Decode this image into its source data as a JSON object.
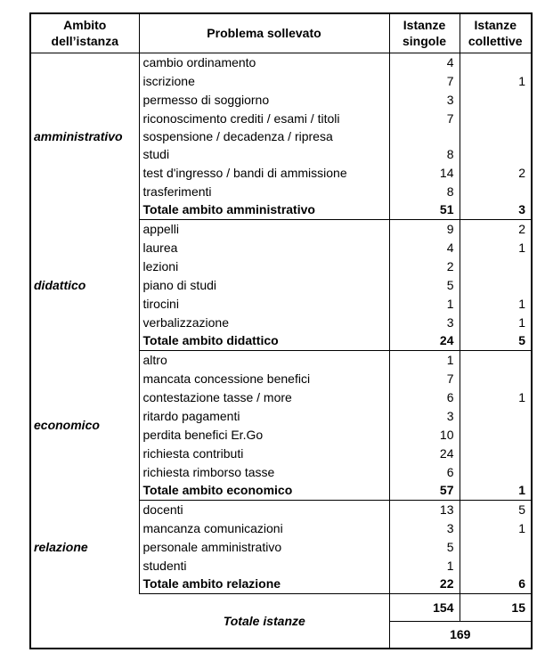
{
  "colors": {
    "background": "#ffffff",
    "text": "#000000",
    "border": "#000000"
  },
  "table": {
    "headers": {
      "ambito": "Ambito dell’istanza",
      "problema": "Problema sollevato",
      "singole": "Istanze singole",
      "collettive": "Istanze collettive"
    },
    "sections": [
      {
        "name": "amministrativo",
        "rows": [
          {
            "label": "cambio ordinamento",
            "singole": 4,
            "collettive": ""
          },
          {
            "label": "iscrizione",
            "singole": 7,
            "collettive": 1
          },
          {
            "label": "permesso di soggiorno",
            "singole": 3,
            "collettive": ""
          },
          {
            "label": "riconoscimento crediti / esami / titoli",
            "singole": 7,
            "collettive": ""
          },
          {
            "label": "sospensione / decadenza / ripresa\nstudi",
            "singole": 8,
            "collettive": ""
          },
          {
            "label": "test d'ingresso / bandi di ammissione",
            "singole": 14,
            "collettive": 2
          },
          {
            "label": "trasferimenti",
            "singole": 8,
            "collettive": ""
          }
        ],
        "total": {
          "label": "Totale ambito amministrativo",
          "singole": 51,
          "collettive": 3
        }
      },
      {
        "name": "didattico",
        "rows": [
          {
            "label": "appelli",
            "singole": 9,
            "collettive": 2
          },
          {
            "label": "laurea",
            "singole": 4,
            "collettive": 1
          },
          {
            "label": "lezioni",
            "singole": 2,
            "collettive": ""
          },
          {
            "label": "piano di studi",
            "singole": 5,
            "collettive": ""
          },
          {
            "label": "tirocini",
            "singole": 1,
            "collettive": 1
          },
          {
            "label": "verbalizzazione",
            "singole": 3,
            "collettive": 1
          }
        ],
        "total": {
          "label": "Totale ambito didattico",
          "singole": 24,
          "collettive": 5
        }
      },
      {
        "name": "economico",
        "rows": [
          {
            "label": "altro",
            "singole": 1,
            "collettive": ""
          },
          {
            "label": "mancata concessione benefici",
            "singole": 7,
            "collettive": ""
          },
          {
            "label": "contestazione tasse / more",
            "singole": 6,
            "collettive": 1
          },
          {
            "label": "ritardo pagamenti",
            "singole": 3,
            "collettive": ""
          },
          {
            "label": "perdita benefici Er.Go",
            "singole": 10,
            "collettive": ""
          },
          {
            "label": "richiesta contributi",
            "singole": 24,
            "collettive": ""
          },
          {
            "label": "richiesta rimborso tasse",
            "singole": 6,
            "collettive": ""
          }
        ],
        "total": {
          "label": "Totale ambito economico",
          "singole": 57,
          "collettive": 1
        }
      },
      {
        "name": "relazione",
        "rows": [
          {
            "label": "docenti",
            "singole": 13,
            "collettive": 5
          },
          {
            "label": "mancanza comunicazioni",
            "singole": 3,
            "collettive": 1
          },
          {
            "label": "personale amministrativo",
            "singole": 5,
            "collettive": ""
          },
          {
            "label": "studenti",
            "singole": 1,
            "collettive": ""
          }
        ],
        "total": {
          "label": "Totale ambito relazione",
          "singole": 22,
          "collettive": 6
        }
      }
    ],
    "footer": {
      "label": "Totale istanze",
      "singole": 154,
      "collettive": 15,
      "totale": 169
    }
  }
}
